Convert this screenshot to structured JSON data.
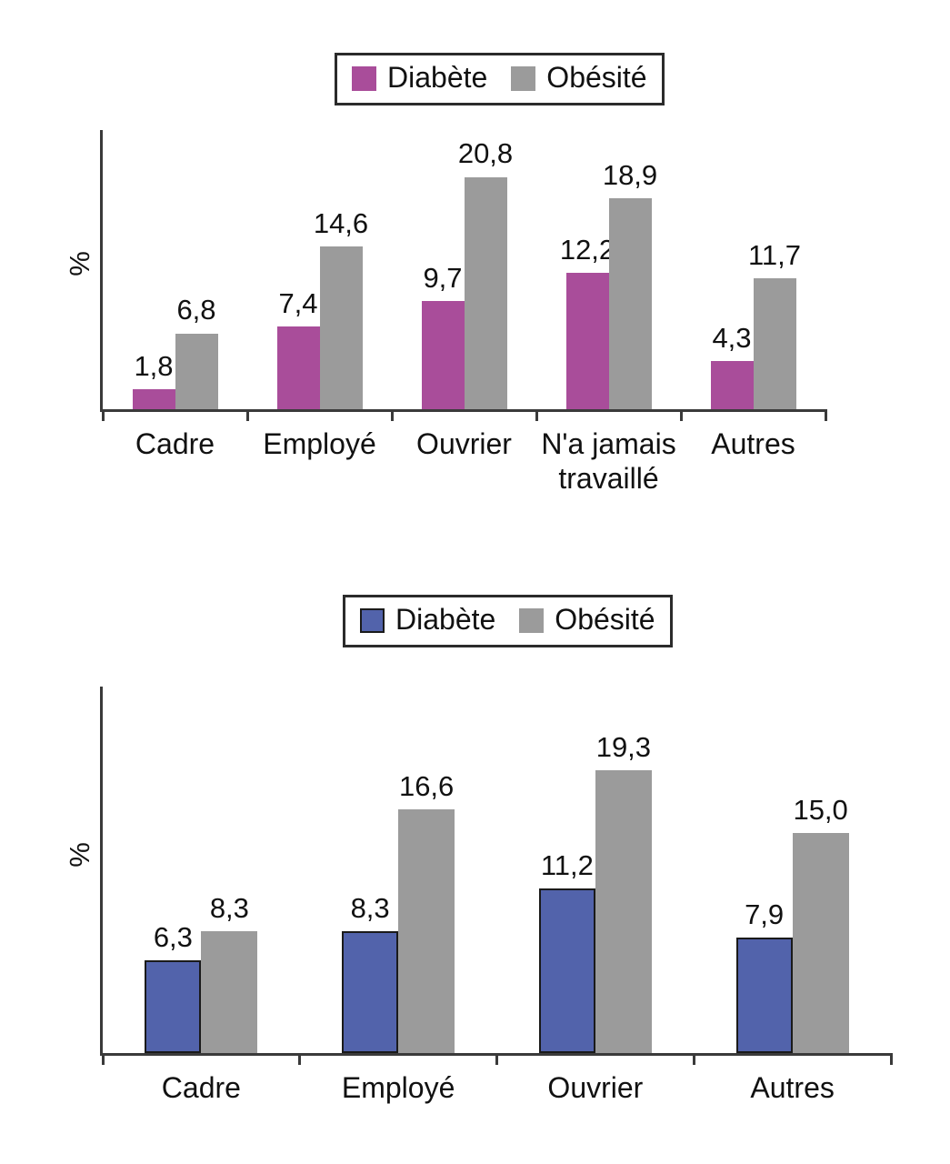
{
  "figure": {
    "background": "#ffffff"
  },
  "chart_data": [
    {
      "type": "bar",
      "title": "",
      "xlabel": "",
      "ylabel": "%",
      "ylim": [
        0,
        25
      ],
      "grid": false,
      "legend_position": "top-center",
      "legend": [
        {
          "label": "Diabète",
          "color": "#a94d9a",
          "bordered": false
        },
        {
          "label": "Obésité",
          "color": "#9b9b9b",
          "bordered": false
        }
      ],
      "categories": [
        "Cadre",
        "Employé",
        "Ouvrier",
        "N'a jamais\ntravaillé",
        "Autres"
      ],
      "series": [
        {
          "name": "Diabète",
          "color": "#a94d9a",
          "values": [
            1.8,
            7.4,
            9.7,
            12.2,
            4.3
          ],
          "value_labels": [
            "1,8",
            "7,4",
            "9,7",
            "12,2",
            "4,3"
          ]
        },
        {
          "name": "Obésité",
          "color": "#9b9b9b",
          "values": [
            6.8,
            14.6,
            20.8,
            18.9,
            11.7
          ],
          "value_labels": [
            "6,8",
            "14,6",
            "20,8",
            "18,9",
            "11,7"
          ]
        }
      ]
    },
    {
      "type": "bar",
      "title": "",
      "xlabel": "",
      "ylabel": "%",
      "ylim": [
        0,
        25
      ],
      "grid": false,
      "legend_position": "top-center",
      "legend": [
        {
          "label": "Diabète",
          "color": "#5263ab",
          "bordered": true
        },
        {
          "label": "Obésité",
          "color": "#9b9b9b",
          "bordered": false
        }
      ],
      "categories": [
        "Cadre",
        "Employé",
        "Ouvrier",
        "Autres"
      ],
      "series": [
        {
          "name": "Diabète",
          "color": "#5263ab",
          "bar_border": "#1a1a1a",
          "values": [
            6.3,
            8.3,
            11.2,
            7.9
          ],
          "value_labels": [
            "6,3",
            "8,3",
            "11,2",
            "7,9"
          ]
        },
        {
          "name": "Obésité",
          "color": "#9b9b9b",
          "values": [
            8.3,
            16.6,
            19.3,
            15.0
          ],
          "value_labels": [
            "8,3",
            "16,6",
            "19,3",
            "15,0"
          ]
        }
      ]
    }
  ]
}
